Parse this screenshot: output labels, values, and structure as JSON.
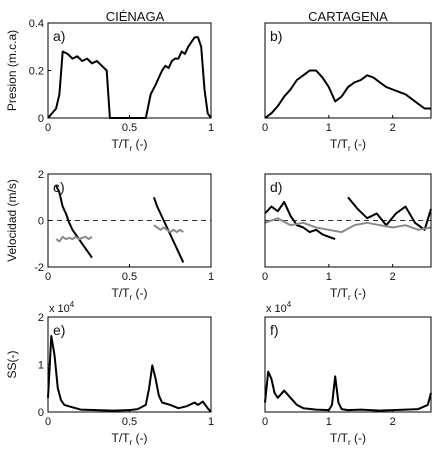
{
  "columns": {
    "left": "CIÉNAGA",
    "right": "CARTAGENA"
  },
  "colors": {
    "main": "#000000",
    "secondary": "#8a8a8a",
    "zero_line": "#333333"
  },
  "chart_data": [
    {
      "type": "line",
      "panel_label": "a)",
      "ylabel": "Presion (m.c.a)",
      "xlabel": "T/T_r (-)",
      "xlim": [
        0,
        1
      ],
      "ylim": [
        0,
        0.4
      ],
      "xticks": [
        "0",
        "0.5",
        "1"
      ],
      "yticks": [
        "0",
        "0.2",
        "0.4"
      ],
      "series": [
        {
          "color": "#000000",
          "x": [
            0,
            0.05,
            0.07,
            0.09,
            0.12,
            0.15,
            0.18,
            0.21,
            0.24,
            0.27,
            0.3,
            0.33,
            0.36,
            0.38,
            0.55,
            0.6,
            0.63,
            0.66,
            0.68,
            0.7,
            0.72,
            0.74,
            0.76,
            0.78,
            0.8,
            0.82,
            0.84,
            0.86,
            0.88,
            0.9,
            0.92,
            0.94,
            0.96,
            0.98,
            1
          ],
          "y": [
            0,
            0.04,
            0.1,
            0.28,
            0.27,
            0.25,
            0.26,
            0.24,
            0.25,
            0.23,
            0.24,
            0.22,
            0.2,
            0,
            0,
            0,
            0.1,
            0.14,
            0.17,
            0.2,
            0.22,
            0.21,
            0.24,
            0.25,
            0.25,
            0.28,
            0.27,
            0.3,
            0.32,
            0.34,
            0.34,
            0.3,
            0.12,
            0.02,
            0
          ]
        }
      ]
    },
    {
      "type": "line",
      "panel_label": "b)",
      "ylabel": "",
      "xlabel": "T/T_r (-)",
      "xlim": [
        0,
        2.6
      ],
      "ylim": [
        0,
        0.4
      ],
      "xticks": [
        "0",
        "1",
        "2"
      ],
      "yticks": [],
      "series": [
        {
          "color": "#000000",
          "x": [
            0,
            0.1,
            0.2,
            0.3,
            0.4,
            0.5,
            0.6,
            0.7,
            0.8,
            0.9,
            1,
            1.1,
            1.2,
            1.3,
            1.4,
            1.5,
            1.6,
            1.7,
            1.8,
            1.9,
            2,
            2.1,
            2.2,
            2.3,
            2.4,
            2.5,
            2.6
          ],
          "y": [
            0,
            0.02,
            0.05,
            0.09,
            0.12,
            0.16,
            0.18,
            0.2,
            0.2,
            0.17,
            0.13,
            0.07,
            0.09,
            0.13,
            0.15,
            0.16,
            0.18,
            0.17,
            0.15,
            0.13,
            0.12,
            0.11,
            0.1,
            0.08,
            0.06,
            0.04,
            0.04
          ]
        }
      ]
    },
    {
      "type": "line",
      "panel_label": "c)",
      "ylabel": "Velocidad (m/s)",
      "xlabel": "T/T_r (-)",
      "xlim": [
        0,
        1
      ],
      "ylim": [
        -2,
        2
      ],
      "xticks": [
        "0",
        "0.5",
        "1"
      ],
      "yticks": [
        "-2",
        "0",
        "2"
      ],
      "zero_line": true,
      "series": [
        {
          "color": "#000000",
          "x": [
            0.05,
            0.07,
            0.09,
            0.11,
            0.13,
            0.15,
            0.17,
            0.19,
            0.21,
            0.23,
            0.25,
            0.27
          ],
          "y": [
            1.5,
            1.2,
            0.6,
            0.3,
            -0.1,
            -0.4,
            -0.6,
            -0.8,
            -1.0,
            -1.2,
            -1.4,
            -1.6
          ]
        },
        {
          "color": "#8a8a8a",
          "x": [
            0.05,
            0.07,
            0.09,
            0.11,
            0.13,
            0.15,
            0.17,
            0.19,
            0.21,
            0.23,
            0.25,
            0.27
          ],
          "y": [
            -0.8,
            -0.9,
            -0.7,
            -0.8,
            -0.75,
            -0.8,
            -0.7,
            -0.8,
            -0.75,
            -0.7,
            -0.8,
            -0.7
          ]
        },
        {
          "color": "#000000",
          "x": [
            0.65,
            0.67,
            0.69,
            0.71,
            0.73,
            0.75,
            0.77,
            0.79,
            0.81,
            0.83
          ],
          "y": [
            1.0,
            0.6,
            0.3,
            0.0,
            -0.3,
            -0.6,
            -0.9,
            -1.2,
            -1.5,
            -1.8
          ]
        },
        {
          "color": "#8a8a8a",
          "x": [
            0.65,
            0.67,
            0.69,
            0.71,
            0.73,
            0.75,
            0.77,
            0.79,
            0.81,
            0.83
          ],
          "y": [
            -0.2,
            -0.3,
            -0.4,
            -0.3,
            -0.4,
            -0.5,
            -0.4,
            -0.5,
            -0.4,
            -0.5
          ]
        }
      ]
    },
    {
      "type": "line",
      "panel_label": "d)",
      "ylabel": "",
      "xlabel": "T/T_r (-)",
      "xlim": [
        0,
        2.6
      ],
      "ylim": [
        -2,
        2
      ],
      "xticks": [
        "0",
        "1",
        "2"
      ],
      "yticks": [],
      "zero_line": true,
      "series": [
        {
          "color": "#000000",
          "x": [
            0,
            0.1,
            0.2,
            0.3,
            0.4,
            0.5,
            0.6,
            0.7,
            0.8,
            0.9,
            1.0,
            1.1
          ],
          "y": [
            0.3,
            0.6,
            0.4,
            0.8,
            0.2,
            -0.2,
            -0.3,
            -0.5,
            -0.4,
            -0.6,
            -0.7,
            -0.8
          ]
        },
        {
          "color": "#000000",
          "x": [
            1.3,
            1.45,
            1.6,
            1.75,
            1.9,
            2.05,
            2.2,
            2.35,
            2.5,
            2.6
          ],
          "y": [
            1.0,
            0.5,
            0.1,
            0.3,
            -0.2,
            0.3,
            0.6,
            -0.1,
            -0.4,
            0.5
          ]
        },
        {
          "color": "#8a8a8a",
          "x": [
            0,
            0.2,
            0.4,
            0.6,
            0.8,
            1.0,
            1.2,
            1.4,
            1.6,
            1.8,
            2.0,
            2.2,
            2.4,
            2.6
          ],
          "y": [
            -0.1,
            0.1,
            -0.2,
            -0.1,
            -0.3,
            -0.4,
            -0.5,
            -0.2,
            -0.1,
            -0.2,
            -0.3,
            -0.2,
            -0.4,
            -0.3
          ]
        }
      ]
    },
    {
      "type": "line",
      "panel_label": "e)",
      "ylabel": "SS(-)",
      "xlabel": "T/T_r (-)",
      "xlim": [
        0,
        1
      ],
      "ylim": [
        0,
        20000
      ],
      "xticks": [
        "0",
        "0.5",
        "1"
      ],
      "yticks": [
        "0",
        "1",
        "2"
      ],
      "multiplier": "x 10",
      "multiplier_exp": "4",
      "series": [
        {
          "color": "#000000",
          "x": [
            0,
            0.02,
            0.04,
            0.06,
            0.08,
            0.1,
            0.15,
            0.2,
            0.3,
            0.4,
            0.5,
            0.55,
            0.6,
            0.62,
            0.64,
            0.66,
            0.68,
            0.7,
            0.75,
            0.8,
            0.85,
            0.9,
            0.92,
            0.95,
            0.98,
            1
          ],
          "y": [
            3000,
            16000,
            12000,
            5000,
            2500,
            1500,
            1000,
            500,
            400,
            300,
            400,
            600,
            1500,
            5000,
            9800,
            7000,
            3500,
            2000,
            1500,
            800,
            1200,
            2000,
            1500,
            2200,
            800,
            0
          ]
        }
      ]
    },
    {
      "type": "line",
      "panel_label": "f)",
      "ylabel": "",
      "xlabel": "T/T_r (-)",
      "xlim": [
        0,
        2.6
      ],
      "ylim": [
        0,
        20000
      ],
      "xticks": [
        "0",
        "1",
        "2"
      ],
      "yticks": [],
      "multiplier": "x 10",
      "multiplier_exp": "4",
      "series": [
        {
          "color": "#000000",
          "x": [
            0,
            0.05,
            0.1,
            0.15,
            0.2,
            0.3,
            0.4,
            0.5,
            0.6,
            0.8,
            1.0,
            1.05,
            1.1,
            1.15,
            1.2,
            1.3,
            1.5,
            1.8,
            2.0,
            2.2,
            2.4,
            2.55,
            2.6
          ],
          "y": [
            2000,
            8500,
            7000,
            4000,
            3000,
            4500,
            3000,
            1500,
            800,
            500,
            400,
            1500,
            7500,
            2000,
            600,
            400,
            500,
            300,
            400,
            500,
            600,
            1500,
            4000
          ]
        }
      ]
    }
  ]
}
